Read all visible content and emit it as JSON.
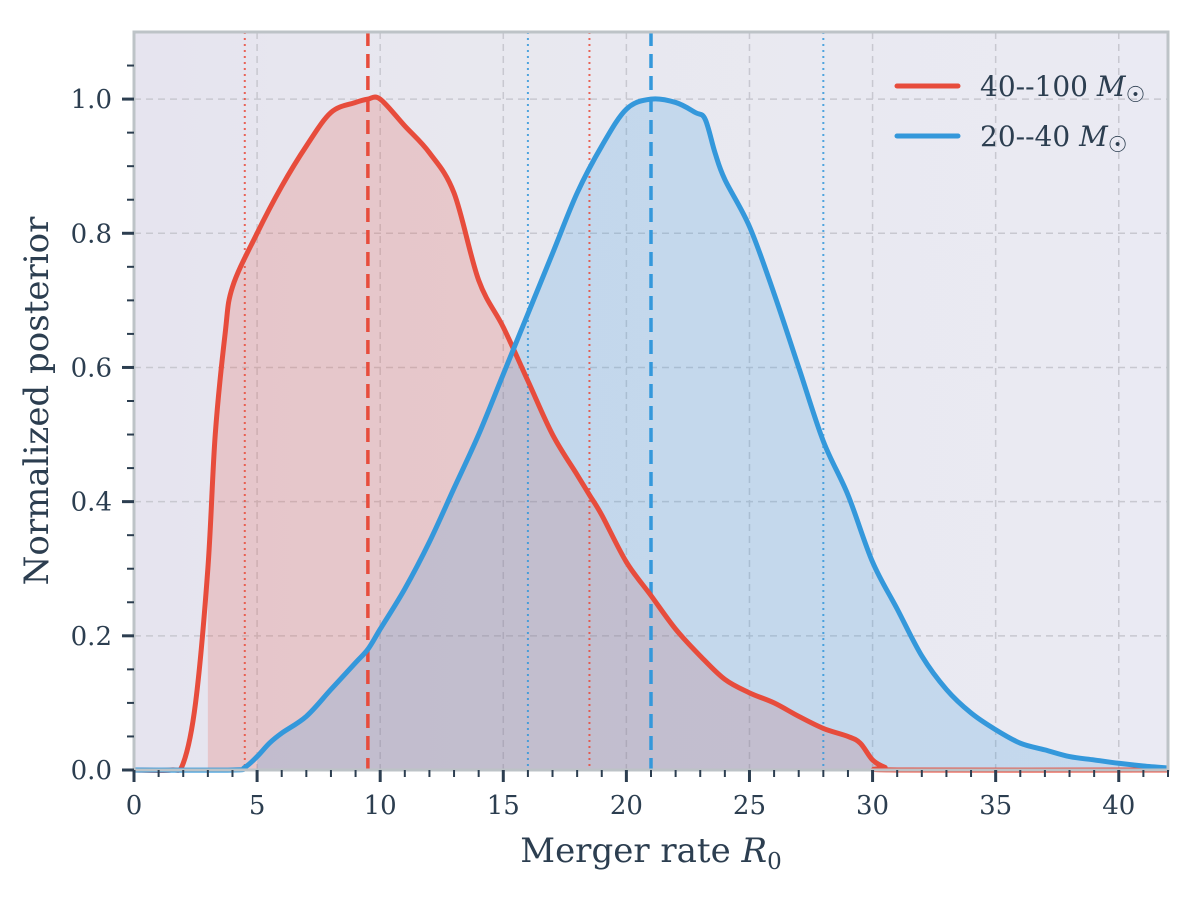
{
  "chart_data": {
    "type": "area",
    "xlabel": "Merger rate R0",
    "xlabel_main": "Merger rate ",
    "xlabel_var": "R",
    "xlabel_sub": "0",
    "ylabel": "Normalized posterior",
    "xlim": [
      0,
      42
    ],
    "ylim": [
      0,
      1.1
    ],
    "xticks": [
      0,
      5,
      10,
      15,
      20,
      25,
      30,
      35,
      40
    ],
    "xtick_labels": [
      "0",
      "5",
      "10",
      "15",
      "20",
      "25",
      "30",
      "35",
      "40"
    ],
    "yticks": [
      0.0,
      0.2,
      0.4,
      0.6,
      0.8,
      1.0
    ],
    "ytick_labels": [
      "0.0",
      "0.2",
      "0.4",
      "0.6",
      "0.8",
      "1.0"
    ],
    "grid": true,
    "legend_position": "top-right",
    "series": [
      {
        "name": "40--100 M☉",
        "legend_text": "40--100",
        "color": "#e74c3c",
        "fill_from": 3,
        "median": 9.5,
        "interval": [
          4.5,
          18.5
        ],
        "x": [
          0,
          1.5,
          2,
          2.5,
          3,
          3.3,
          3.7,
          4,
          5,
          6,
          7,
          8,
          9,
          9.5,
          10,
          11,
          12,
          13,
          14,
          15,
          16,
          17,
          18,
          18.5,
          19,
          20,
          21,
          22,
          23,
          24,
          25,
          26,
          27,
          28,
          29,
          29.5,
          30,
          30.5,
          31,
          42
        ],
        "y": [
          0,
          0,
          0.01,
          0.1,
          0.3,
          0.5,
          0.65,
          0.72,
          0.8,
          0.87,
          0.93,
          0.98,
          0.995,
          1.0,
          1.0,
          0.96,
          0.92,
          0.86,
          0.73,
          0.66,
          0.58,
          0.5,
          0.44,
          0.41,
          0.38,
          0.31,
          0.26,
          0.21,
          0.17,
          0.135,
          0.115,
          0.1,
          0.08,
          0.062,
          0.05,
          0.04,
          0.015,
          0.004,
          0,
          0
        ]
      },
      {
        "name": "20--40 M☉",
        "legend_text": "20--40",
        "color": "#3498db",
        "fill_from": 5,
        "median": 21,
        "interval": [
          16,
          28
        ],
        "x": [
          0,
          4,
          4.5,
          5,
          5.5,
          6,
          7,
          8,
          9,
          9.5,
          10,
          11,
          12,
          13,
          14,
          15,
          16,
          17,
          18,
          19,
          20,
          21,
          22,
          22.8,
          23.2,
          23.6,
          24,
          25,
          26,
          27,
          28,
          29,
          30,
          31,
          32,
          33,
          34,
          35,
          36,
          37,
          38,
          39,
          40,
          41,
          42
        ],
        "y": [
          0,
          0,
          0.004,
          0.02,
          0.04,
          0.055,
          0.08,
          0.12,
          0.16,
          0.18,
          0.21,
          0.27,
          0.34,
          0.42,
          0.5,
          0.59,
          0.68,
          0.77,
          0.86,
          0.93,
          0.985,
          1.0,
          0.995,
          0.98,
          0.97,
          0.92,
          0.88,
          0.81,
          0.71,
          0.6,
          0.49,
          0.41,
          0.31,
          0.24,
          0.17,
          0.12,
          0.085,
          0.06,
          0.04,
          0.03,
          0.02,
          0.015,
          0.01,
          0.006,
          0.003
        ]
      }
    ]
  }
}
